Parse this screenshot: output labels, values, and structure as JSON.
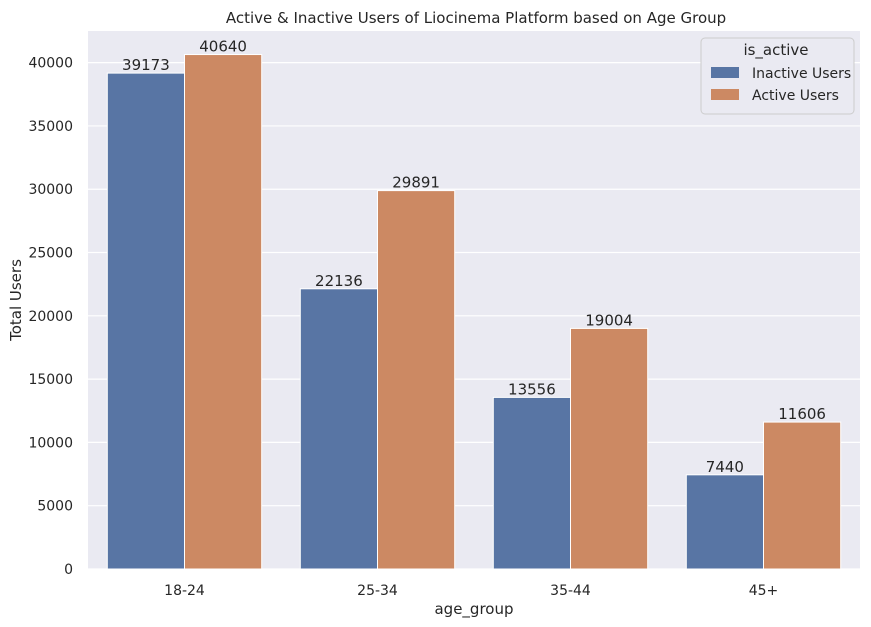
{
  "chart_data": {
    "type": "bar",
    "title": "Active & Inactive Users of Liocinema Platform based on Age Group",
    "xlabel": "age_group",
    "ylabel": "Total Users",
    "categories": [
      "18-24",
      "25-34",
      "35-44",
      "45+"
    ],
    "series": [
      {
        "name": "Inactive Users",
        "values": [
          39173,
          22136,
          13556,
          7440
        ],
        "labels": [
          "39173",
          "22136",
          "13556",
          "7440"
        ],
        "color": "#5875a4"
      },
      {
        "name": "Active Users",
        "values": [
          40640,
          29891,
          19004,
          11606
        ],
        "labels": [
          "40640",
          "29891",
          "19004",
          "11606"
        ],
        "color": "#cc8963"
      }
    ],
    "ylim": [
      0,
      42500
    ],
    "yticks": [
      0,
      5000,
      10000,
      15000,
      20000,
      25000,
      30000,
      35000,
      40000
    ],
    "ytick_labels": [
      "0",
      "5000",
      "10000",
      "15000",
      "20000",
      "25000",
      "30000",
      "35000",
      "40000"
    ],
    "legend": {
      "title": "is_active",
      "placement": "top-right"
    },
    "grid": true,
    "background": "#eaeaf2"
  }
}
